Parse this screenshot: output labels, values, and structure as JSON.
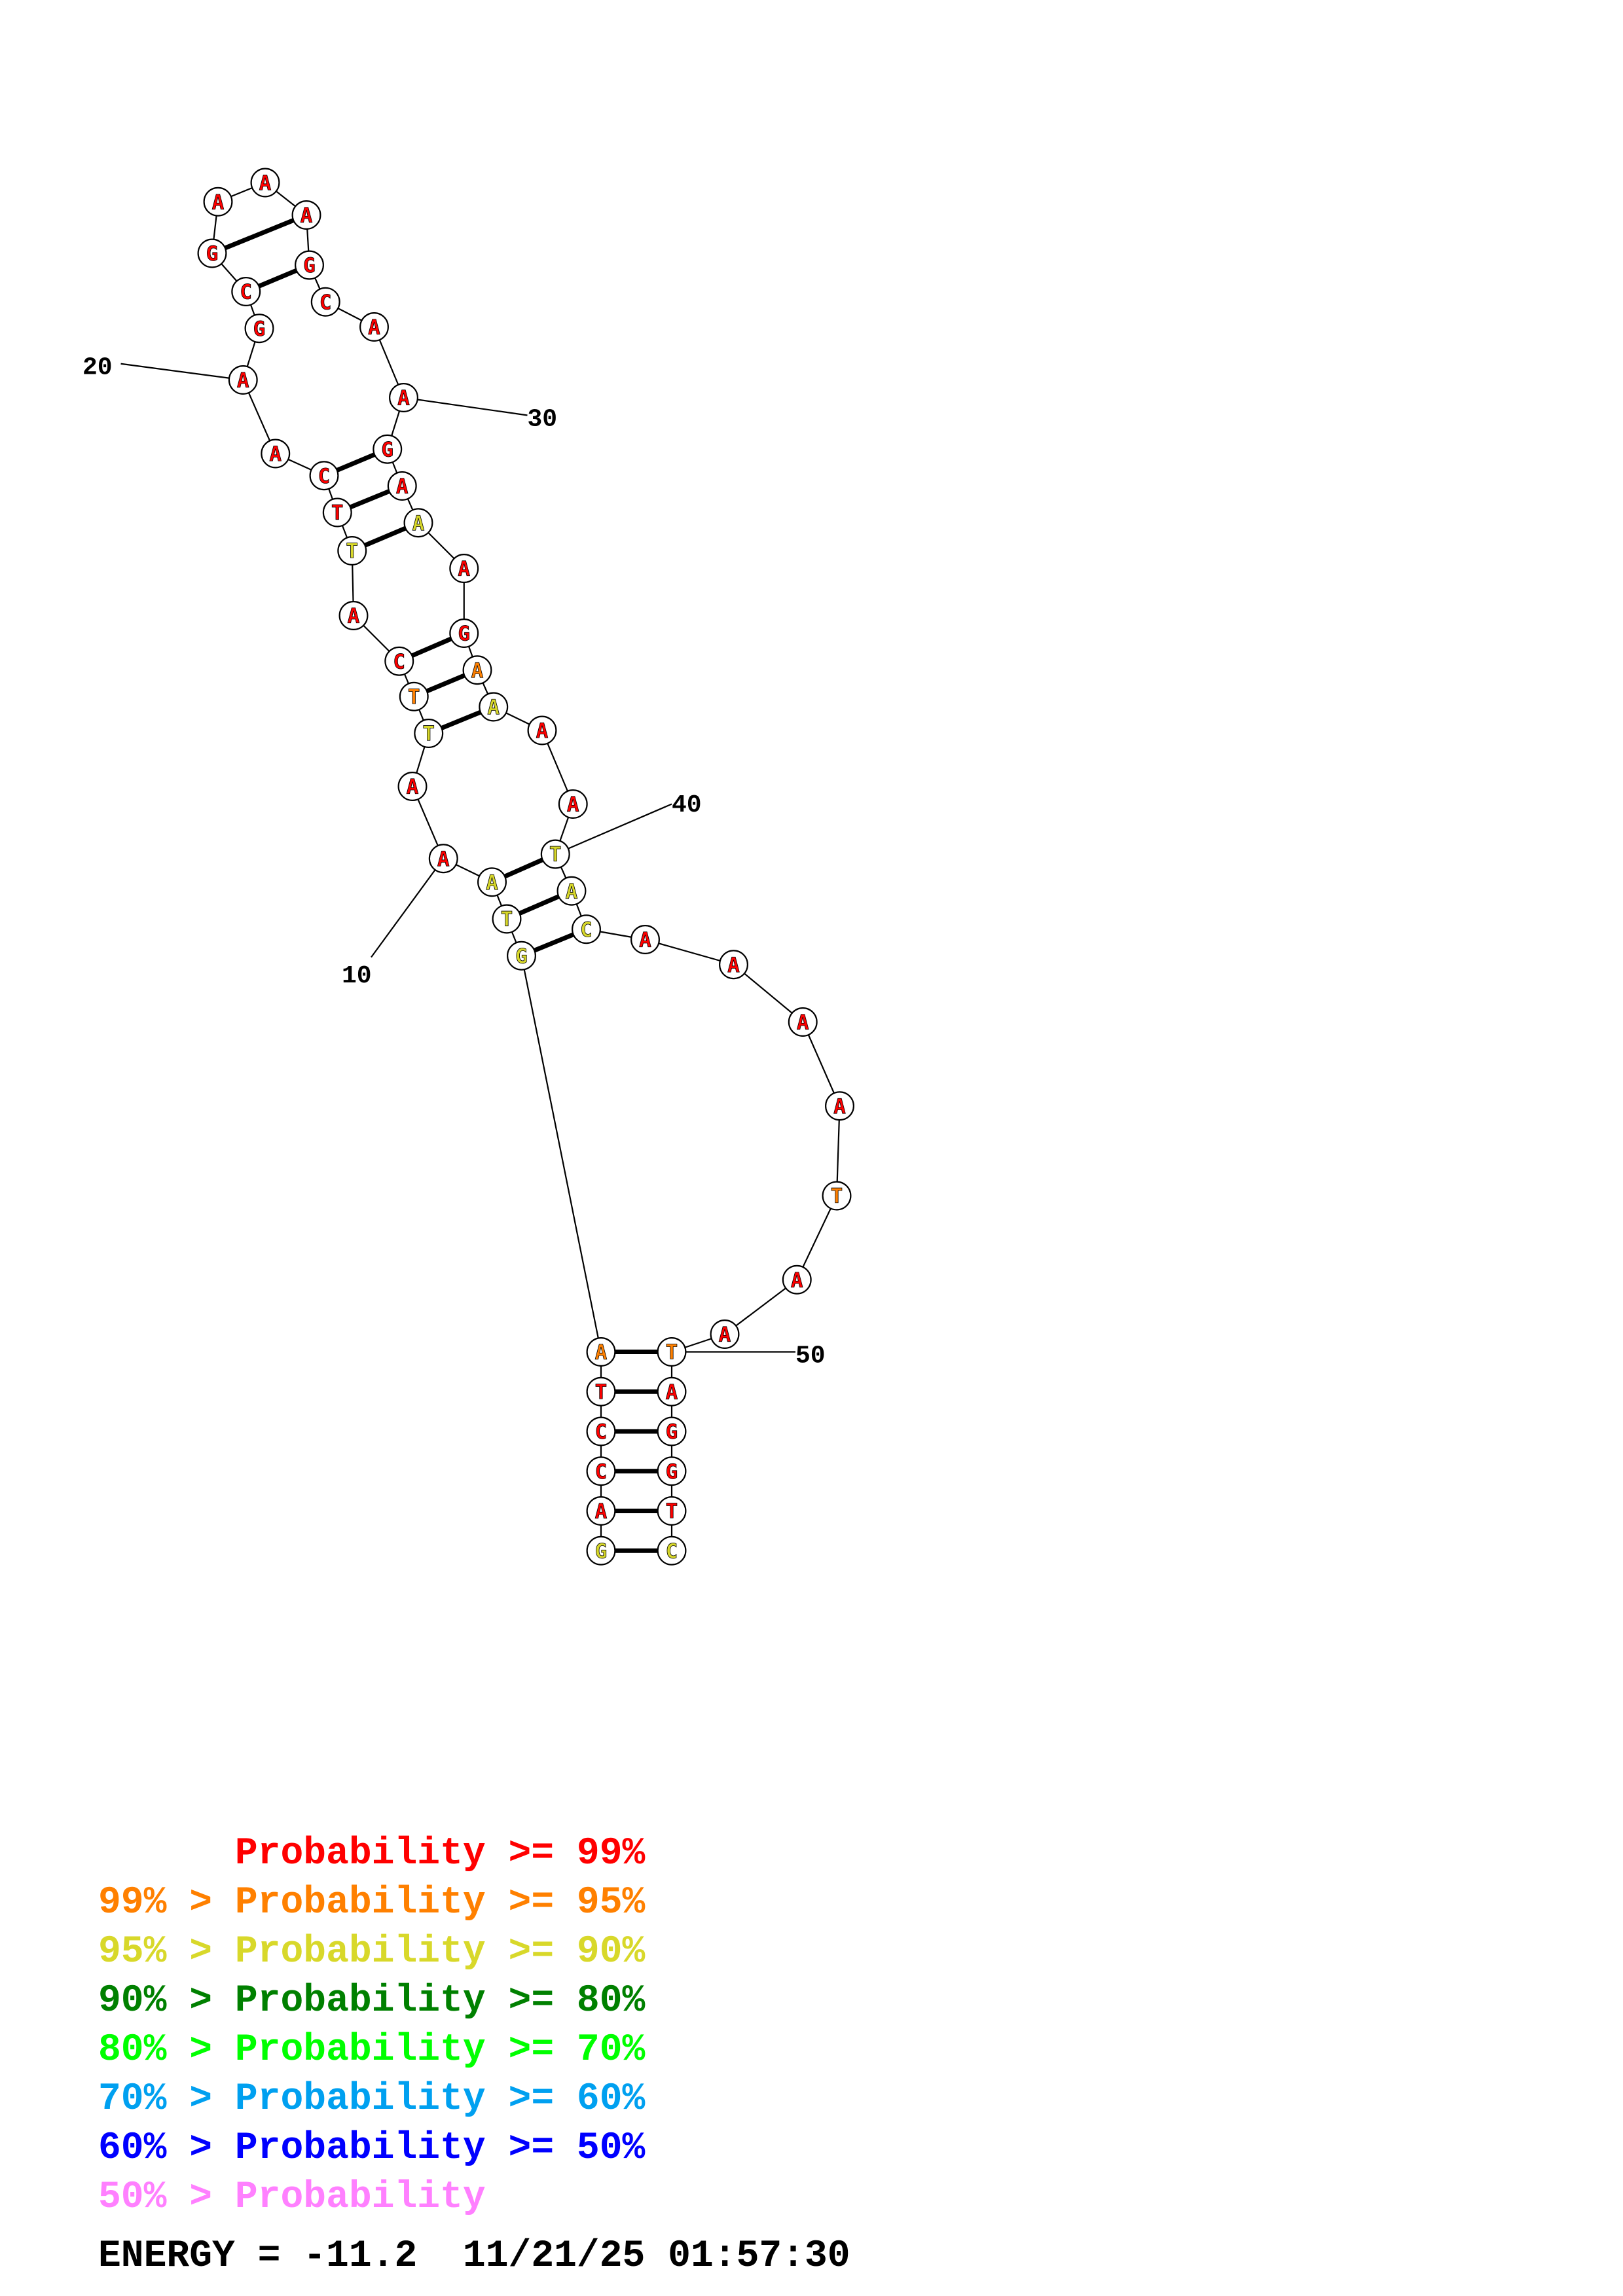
{
  "palette": {
    "red": "#ff0000",
    "orange": "#ff8000",
    "yellow": "#d8d82a",
    "dark_green": "#008000",
    "green": "#00ff00",
    "light_blue": "#00a0f0",
    "blue": "#0000ff",
    "pink": "#ff80ff"
  },
  "bases": [
    {
      "n": 1,
      "letter": "G",
      "color": "yellow"
    },
    {
      "n": 2,
      "letter": "A",
      "color": "red"
    },
    {
      "n": 3,
      "letter": "C",
      "color": "red"
    },
    {
      "n": 4,
      "letter": "C",
      "color": "red"
    },
    {
      "n": 5,
      "letter": "T",
      "color": "red"
    },
    {
      "n": 6,
      "letter": "A",
      "color": "orange"
    },
    {
      "n": 7,
      "letter": "G",
      "color": "yellow"
    },
    {
      "n": 8,
      "letter": "T",
      "color": "yellow"
    },
    {
      "n": 9,
      "letter": "A",
      "color": "yellow"
    },
    {
      "n": 10,
      "letter": "A",
      "color": "red"
    },
    {
      "n": 11,
      "letter": "A",
      "color": "red"
    },
    {
      "n": 12,
      "letter": "T",
      "color": "yellow"
    },
    {
      "n": 13,
      "letter": "T",
      "color": "orange"
    },
    {
      "n": 14,
      "letter": "C",
      "color": "red"
    },
    {
      "n": 15,
      "letter": "A",
      "color": "red"
    },
    {
      "n": 16,
      "letter": "T",
      "color": "yellow"
    },
    {
      "n": 17,
      "letter": "T",
      "color": "red"
    },
    {
      "n": 18,
      "letter": "C",
      "color": "red"
    },
    {
      "n": 19,
      "letter": "A",
      "color": "red"
    },
    {
      "n": 20,
      "letter": "A",
      "color": "red"
    },
    {
      "n": 21,
      "letter": "G",
      "color": "red"
    },
    {
      "n": 22,
      "letter": "C",
      "color": "red"
    },
    {
      "n": 23,
      "letter": "G",
      "color": "red"
    },
    {
      "n": 24,
      "letter": "A",
      "color": "red"
    },
    {
      "n": 25,
      "letter": "A",
      "color": "red"
    },
    {
      "n": 26,
      "letter": "A",
      "color": "red"
    },
    {
      "n": 27,
      "letter": "G",
      "color": "red"
    },
    {
      "n": 28,
      "letter": "C",
      "color": "red"
    },
    {
      "n": 29,
      "letter": "A",
      "color": "red"
    },
    {
      "n": 30,
      "letter": "A",
      "color": "red"
    },
    {
      "n": 31,
      "letter": "G",
      "color": "red"
    },
    {
      "n": 32,
      "letter": "A",
      "color": "red"
    },
    {
      "n": 33,
      "letter": "A",
      "color": "yellow"
    },
    {
      "n": 34,
      "letter": "A",
      "color": "red"
    },
    {
      "n": 35,
      "letter": "G",
      "color": "red"
    },
    {
      "n": 36,
      "letter": "A",
      "color": "orange"
    },
    {
      "n": 37,
      "letter": "A",
      "color": "yellow"
    },
    {
      "n": 38,
      "letter": "A",
      "color": "red"
    },
    {
      "n": 39,
      "letter": "A",
      "color": "red"
    },
    {
      "n": 40,
      "letter": "T",
      "color": "yellow"
    },
    {
      "n": 41,
      "letter": "A",
      "color": "yellow"
    },
    {
      "n": 42,
      "letter": "C",
      "color": "yellow"
    },
    {
      "n": 43,
      "letter": "A",
      "color": "red"
    },
    {
      "n": 44,
      "letter": "A",
      "color": "red"
    },
    {
      "n": 45,
      "letter": "A",
      "color": "red"
    },
    {
      "n": 46,
      "letter": "A",
      "color": "red"
    },
    {
      "n": 47,
      "letter": "T",
      "color": "orange"
    },
    {
      "n": 48,
      "letter": "A",
      "color": "red"
    },
    {
      "n": 49,
      "letter": "A",
      "color": "red"
    },
    {
      "n": 50,
      "letter": "T",
      "color": "orange"
    },
    {
      "n": 51,
      "letter": "A",
      "color": "red"
    },
    {
      "n": 52,
      "letter": "G",
      "color": "red"
    },
    {
      "n": 53,
      "letter": "G",
      "color": "red"
    },
    {
      "n": 54,
      "letter": "T",
      "color": "red"
    },
    {
      "n": 55,
      "letter": "C",
      "color": "yellow"
    }
  ],
  "pairs": [
    [
      1,
      55
    ],
    [
      2,
      54
    ],
    [
      3,
      53
    ],
    [
      4,
      52
    ],
    [
      5,
      51
    ],
    [
      6,
      50
    ],
    [
      7,
      42
    ],
    [
      8,
      41
    ],
    [
      9,
      40
    ],
    [
      12,
      37
    ],
    [
      13,
      36
    ],
    [
      14,
      35
    ],
    [
      16,
      33
    ],
    [
      17,
      32
    ],
    [
      18,
      31
    ],
    [
      22,
      27
    ],
    [
      23,
      26
    ]
  ],
  "position_labels": [
    {
      "n": 10,
      "text": "10"
    },
    {
      "n": 20,
      "text": "20"
    },
    {
      "n": 30,
      "text": "30"
    },
    {
      "n": 40,
      "text": "40"
    },
    {
      "n": 50,
      "text": "50"
    }
  ],
  "legend": [
    {
      "prefix": "   ",
      "text": "Probability >= 99%",
      "color": "red"
    },
    {
      "prefix": "99% > ",
      "text": "Probability >= 95%",
      "color": "orange"
    },
    {
      "prefix": "95% > ",
      "text": "Probability >= 90%",
      "color": "yellow"
    },
    {
      "prefix": "90% > ",
      "text": "Probability >= 80%",
      "color": "dark_green"
    },
    {
      "prefix": "80% > ",
      "text": "Probability >= 70%",
      "color": "green"
    },
    {
      "prefix": "70% > ",
      "text": "Probability >= 60%",
      "color": "light_blue"
    },
    {
      "prefix": "60% > ",
      "text": "Probability >= 50%",
      "color": "blue"
    },
    {
      "prefix": "50% > ",
      "text": "Probability",
      "color": "pink"
    }
  ],
  "footer": {
    "energy": "ENERGY = -11.2",
    "timestamp": "11/21/25 01:57:30"
  }
}
